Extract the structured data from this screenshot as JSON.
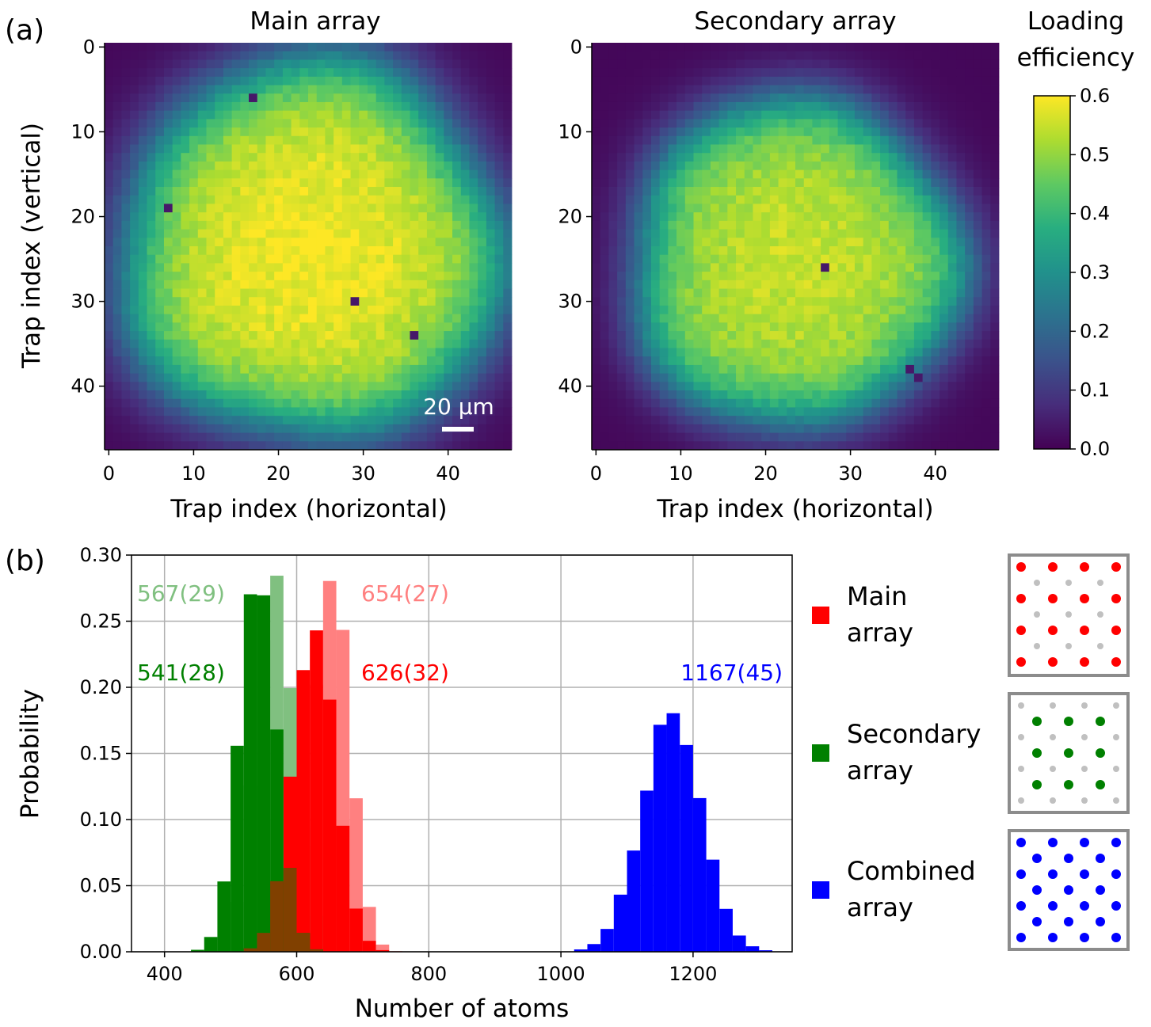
{
  "figure": {
    "panel_a_label": "(a)",
    "panel_b_label": "(b)"
  },
  "panel_a": {
    "type": "heatmap",
    "x_label": "Trap index (horizontal)",
    "y_label": "Trap index (vertical)",
    "x_ticks": [
      "0",
      "10",
      "20",
      "30",
      "40"
    ],
    "y_ticks": [
      "0",
      "10",
      "20",
      "30",
      "40"
    ],
    "scale_bar_label": "20 µm",
    "maps": [
      {
        "title": "Main array",
        "center": [
          24,
          24
        ],
        "radius": 22.5,
        "peak": 0.58,
        "edge_width": 2.4,
        "defects": [
          [
            7,
            19
          ],
          [
            17,
            6
          ],
          [
            29,
            30
          ],
          [
            36,
            34
          ]
        ]
      },
      {
        "title": "Secondary array",
        "center": [
          23.5,
          25.5
        ],
        "radius": 19.5,
        "peak": 0.54,
        "edge_width": 2.0,
        "defects": [
          [
            37,
            38
          ],
          [
            38,
            39
          ],
          [
            27,
            26
          ]
        ]
      }
    ],
    "colorbar": {
      "title_line1": "Loading",
      "title_line2": "efficiency",
      "range": [
        0.0,
        0.6
      ],
      "ticks": [
        "0.0",
        "0.1",
        "0.2",
        "0.3",
        "0.4",
        "0.5",
        "0.6"
      ],
      "colormap": "viridis"
    }
  },
  "chart_data": {
    "type": "histogram",
    "xlabel": "Number of atoms",
    "ylabel": "Probability",
    "xlim": [
      350,
      1350
    ],
    "ylim": [
      0,
      0.3
    ],
    "x_ticks": [
      "400",
      "600",
      "800",
      "1000",
      "1200"
    ],
    "y_ticks": [
      "0.00",
      "0.05",
      "0.10",
      "0.15",
      "0.20",
      "0.25",
      "0.30"
    ],
    "grid": true,
    "bin_width": 20,
    "series": [
      {
        "name": "Main array (light)",
        "color": "#ff8080",
        "mean": 654,
        "std": 27,
        "label": "654(27)"
      },
      {
        "name": "Secondary array (light)",
        "color": "#80c080",
        "mean": 567,
        "std": 29,
        "label": "567(29)"
      },
      {
        "name": "Main array",
        "color": "#ff0000",
        "mean": 626,
        "std": 32,
        "label": "626(32)"
      },
      {
        "name": "Secondary array",
        "color": "#008000",
        "mean": 541,
        "std": 28,
        "label": "541(28)"
      },
      {
        "name": "Combined array",
        "color": "#0000ff",
        "mean": 1167,
        "std": 45,
        "label": "1167(45)"
      }
    ],
    "overlap_color": "#804000"
  },
  "legend": {
    "items": [
      {
        "line1": "Main",
        "line2": "array",
        "color": "#ff0000",
        "pattern": "main"
      },
      {
        "line1": "Secondary",
        "line2": "array",
        "color": "#008000",
        "pattern": "secondary"
      },
      {
        "line1": "Combined",
        "line2": "array",
        "color": "#0000ff",
        "pattern": "combined"
      }
    ],
    "inactive_dot_color": "#c0c0c0"
  }
}
